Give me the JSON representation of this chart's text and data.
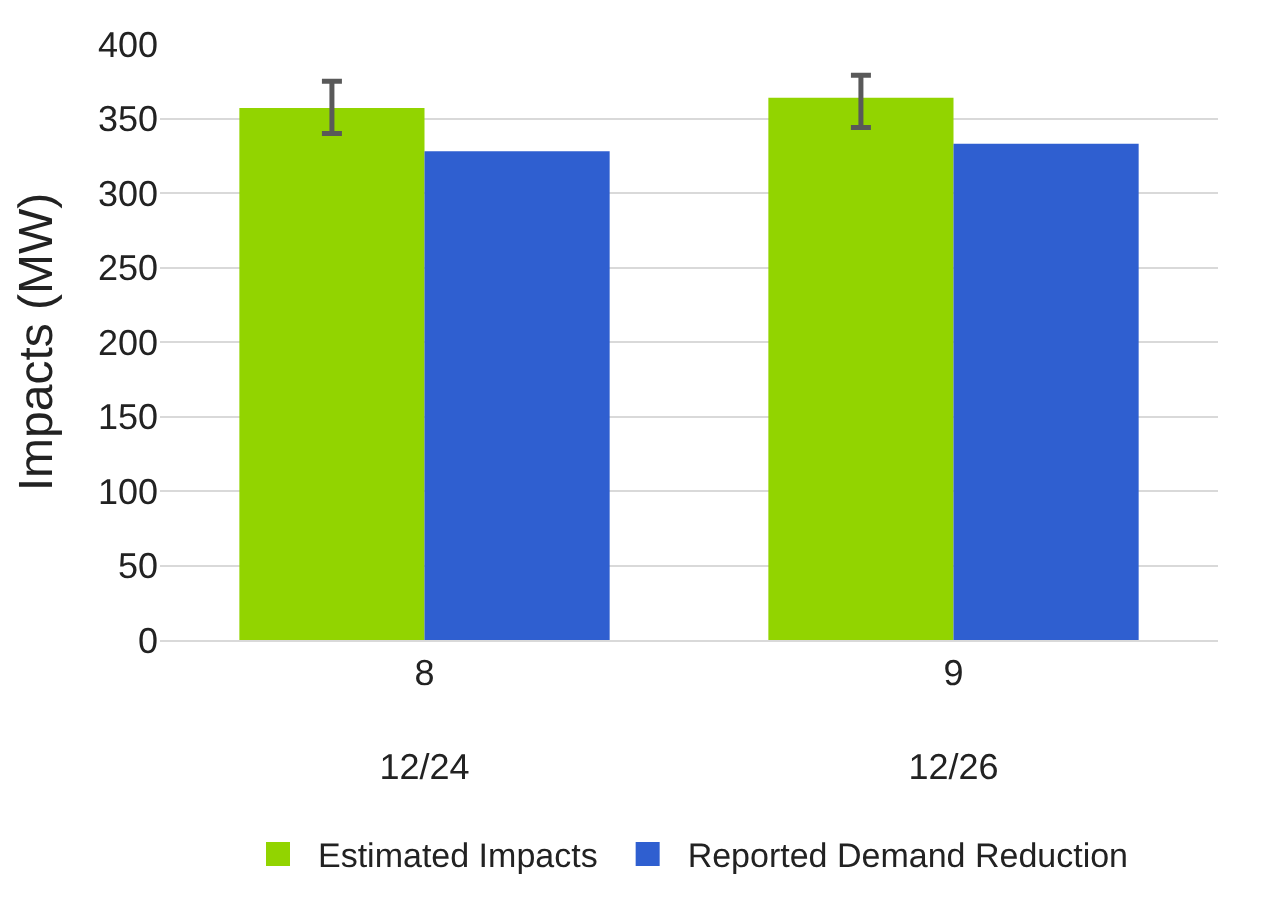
{
  "chart_data": {
    "type": "bar",
    "ylabel": "Impacts (MW)",
    "categories": [
      "8\n12/24",
      "9\n12/26"
    ],
    "series": [
      {
        "name": "Estimated Impacts",
        "color": "#92d400",
        "values": [
          357,
          364
        ],
        "errors": [
          [
            340,
            375
          ],
          [
            344,
            379
          ]
        ]
      },
      {
        "name": "Reported Demand Reduction",
        "color": "#2f5fd0",
        "values": [
          328,
          333
        ]
      }
    ],
    "ylim": [
      0,
      400
    ],
    "yticks": [
      0,
      50,
      100,
      150,
      200,
      250,
      300,
      350,
      400
    ],
    "grid": "y",
    "legend": "bottom"
  }
}
